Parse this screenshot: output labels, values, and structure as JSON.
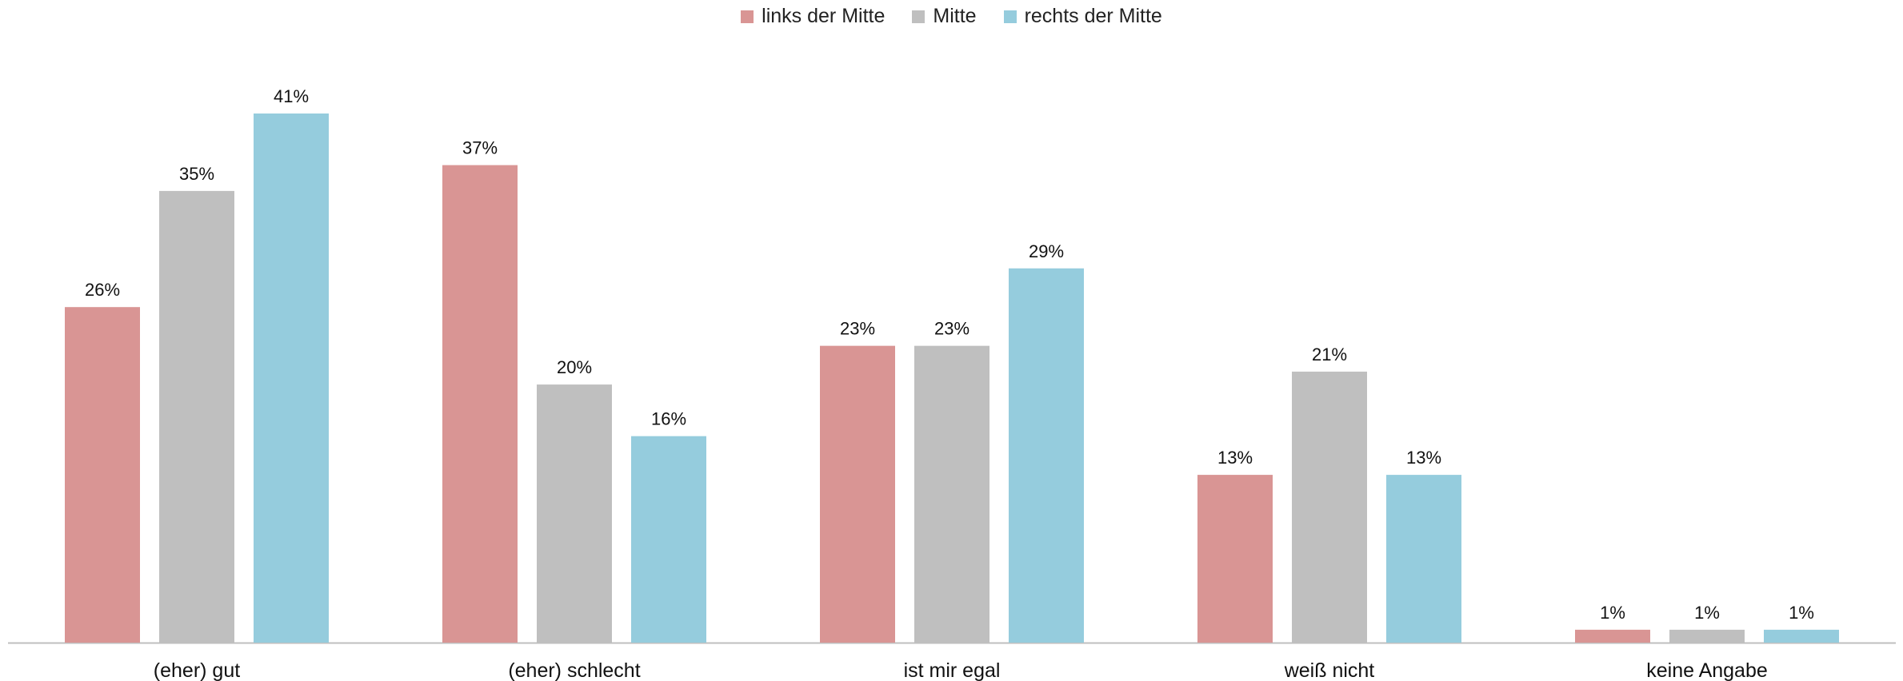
{
  "chart_data": {
    "type": "bar",
    "title": "",
    "xlabel": "",
    "ylabel": "",
    "ylim": [
      0,
      42
    ],
    "grid": false,
    "legend_position": "top-center",
    "categories": [
      "(eher) gut",
      "(eher) schlecht",
      "ist mir egal",
      "weiß nicht",
      "keine Angabe"
    ],
    "series": [
      {
        "name": "links der Mitte",
        "color": "#d99594",
        "values": [
          26,
          37,
          23,
          13,
          1
        ],
        "labels": [
          "26%",
          "37%",
          "23%",
          "13%",
          "1%"
        ]
      },
      {
        "name": "Mitte",
        "color": "#bfbfbf",
        "values": [
          35,
          20,
          23,
          21,
          1
        ],
        "labels": [
          "35%",
          "20%",
          "23%",
          "21%",
          "1%"
        ]
      },
      {
        "name": "rechts der Mitte",
        "color": "#95ccdd",
        "values": [
          41,
          16,
          29,
          13,
          1
        ],
        "labels": [
          "41%",
          "16%",
          "29%",
          "13%",
          "1%"
        ]
      }
    ]
  }
}
